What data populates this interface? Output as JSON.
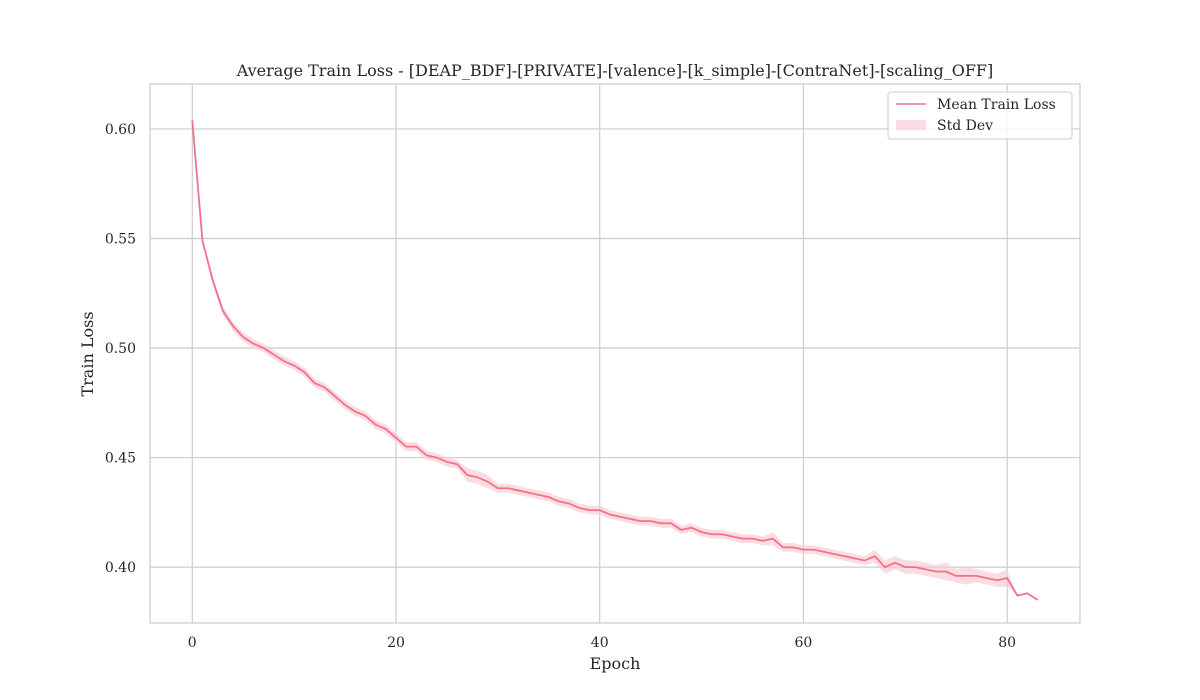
{
  "chart_data": {
    "type": "line",
    "title": "Average Train Loss - [DEAP_BDF]-[PRIVATE]-[valence]-[k_simple]-[ContraNet]-[scaling_OFF]",
    "xlabel": "Epoch",
    "ylabel": "Train Loss",
    "xlim": [
      -4.15,
      87.15
    ],
    "ylim": [
      0.3745,
      0.6205
    ],
    "xticks": [
      0,
      20,
      40,
      60,
      80
    ],
    "yticks": [
      0.4,
      0.45,
      0.5,
      0.55,
      0.6
    ],
    "xtick_labels": [
      "0",
      "20",
      "40",
      "60",
      "80"
    ],
    "ytick_labels": [
      "0.40",
      "0.45",
      "0.50",
      "0.55",
      "0.60"
    ],
    "grid": true,
    "legend_position": "top-right",
    "colors": {
      "line": "#f2728c",
      "band": "#f7c9d3",
      "grid": "#cccccc",
      "spine": "#cccccc"
    },
    "series": [
      {
        "name": "Mean Train Loss",
        "x": [
          0,
          1,
          2,
          3,
          4,
          5,
          6,
          7,
          8,
          9,
          10,
          11,
          12,
          13,
          14,
          15,
          16,
          17,
          18,
          19,
          20,
          21,
          22,
          23,
          24,
          25,
          26,
          27,
          28,
          29,
          30,
          31,
          32,
          33,
          34,
          35,
          36,
          37,
          38,
          39,
          40,
          41,
          42,
          43,
          44,
          45,
          46,
          47,
          48,
          49,
          50,
          51,
          52,
          53,
          54,
          55,
          56,
          57,
          58,
          59,
          60,
          61,
          62,
          63,
          64,
          65,
          66,
          67,
          68,
          69,
          70,
          71,
          72,
          73,
          74,
          75,
          76,
          77,
          78,
          79,
          80,
          81,
          82,
          83
        ],
        "mean": [
          0.604,
          0.549,
          0.531,
          0.517,
          0.51,
          0.505,
          0.502,
          0.5,
          0.497,
          0.494,
          0.492,
          0.489,
          0.484,
          0.482,
          0.478,
          0.474,
          0.471,
          0.469,
          0.465,
          0.463,
          0.459,
          0.455,
          0.455,
          0.451,
          0.45,
          0.448,
          0.447,
          0.442,
          0.441,
          0.439,
          0.436,
          0.436,
          0.435,
          0.434,
          0.433,
          0.432,
          0.43,
          0.429,
          0.427,
          0.426,
          0.426,
          0.424,
          0.423,
          0.422,
          0.421,
          0.421,
          0.42,
          0.42,
          0.417,
          0.418,
          0.416,
          0.415,
          0.415,
          0.414,
          0.413,
          0.413,
          0.412,
          0.413,
          0.409,
          0.409,
          0.408,
          0.408,
          0.407,
          0.406,
          0.405,
          0.404,
          0.403,
          0.405,
          0.4,
          0.402,
          0.4,
          0.4,
          0.399,
          0.398,
          0.398,
          0.396,
          0.396,
          0.396,
          0.395,
          0.394,
          0.395,
          0.387,
          0.388,
          0.385
        ],
        "std_band": "Std Dev",
        "std": [
          0.001,
          0.001,
          0.002,
          0.002,
          0.002,
          0.002,
          0.002,
          0.002,
          0.002,
          0.002,
          0.002,
          0.002,
          0.002,
          0.002,
          0.002,
          0.002,
          0.002,
          0.002,
          0.002,
          0.002,
          0.002,
          0.002,
          0.002,
          0.002,
          0.002,
          0.002,
          0.002,
          0.003,
          0.003,
          0.003,
          0.002,
          0.002,
          0.002,
          0.002,
          0.002,
          0.002,
          0.002,
          0.002,
          0.002,
          0.002,
          0.002,
          0.002,
          0.002,
          0.002,
          0.002,
          0.002,
          0.002,
          0.002,
          0.002,
          0.002,
          0.002,
          0.002,
          0.002,
          0.002,
          0.002,
          0.002,
          0.002,
          0.003,
          0.002,
          0.002,
          0.002,
          0.002,
          0.002,
          0.002,
          0.002,
          0.002,
          0.002,
          0.003,
          0.003,
          0.003,
          0.003,
          0.003,
          0.003,
          0.003,
          0.004,
          0.003,
          0.004,
          0.003,
          0.003,
          0.003,
          0.004,
          0,
          0,
          0
        ]
      }
    ],
    "legend": {
      "line_label": "Mean Train Loss",
      "band_label": "Std Dev"
    }
  }
}
